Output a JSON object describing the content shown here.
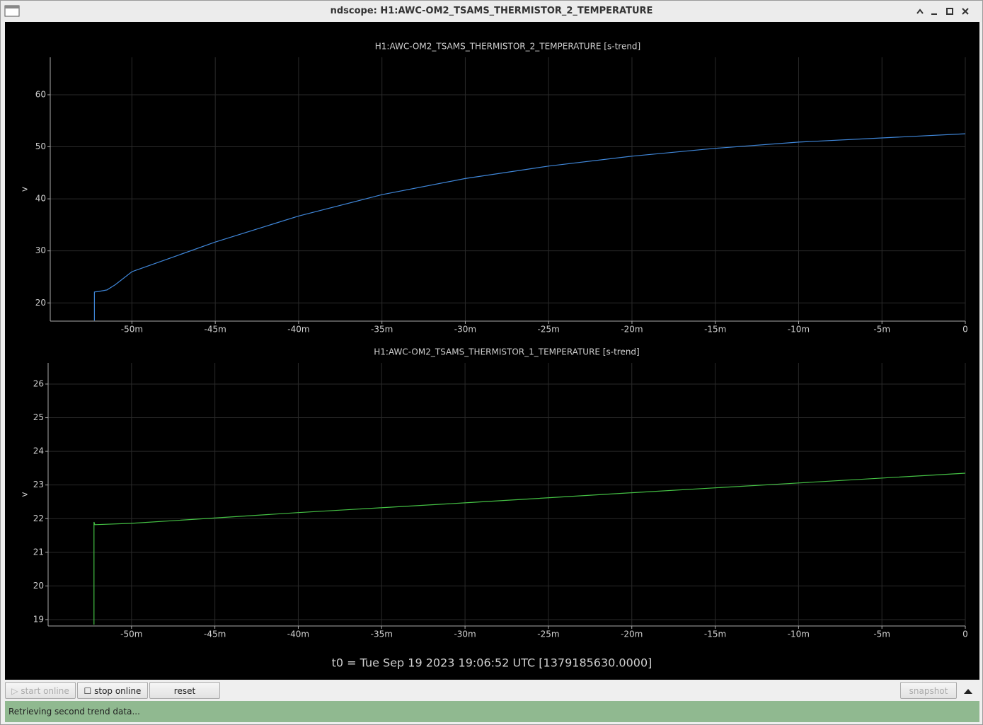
{
  "window": {
    "title": "ndscope: H1:AWC-OM2_TSAMS_THERMISTOR_2_TEMPERATURE"
  },
  "chart_data": [
    {
      "type": "line",
      "title": "H1:AWC-OM2_TSAMS_THERMISTOR_2_TEMPERATURE [s-trend]",
      "y_label": "v",
      "x": [
        -52.25,
        -52.25,
        -52,
        -51.5,
        -51,
        -50,
        -45,
        -40,
        -35,
        -30,
        -25,
        -20,
        -15,
        -10,
        -5,
        0
      ],
      "series": [
        {
          "color": "#3f86d8",
          "values": [
            16.6,
            22.1,
            22.2,
            22.5,
            23.5,
            26.0,
            31.7,
            36.7,
            40.8,
            43.9,
            46.3,
            48.2,
            49.7,
            50.9,
            51.7,
            52.5
          ]
        }
      ],
      "xlim": [
        -54.9,
        0
      ],
      "xticks": [
        {
          "value": -50,
          "label": "-50m"
        },
        {
          "value": -45,
          "label": "-45m"
        },
        {
          "value": -40,
          "label": "-40m"
        },
        {
          "value": -35,
          "label": "-35m"
        },
        {
          "value": -30,
          "label": "-30m"
        },
        {
          "value": -25,
          "label": "-25m"
        },
        {
          "value": -20,
          "label": "-20m"
        },
        {
          "value": -15,
          "label": "-15m"
        },
        {
          "value": -10,
          "label": "-10m"
        },
        {
          "value": -5,
          "label": "-5m"
        },
        0
      ],
      "ylim": [
        16.5,
        67.2
      ],
      "yticks": [
        20,
        30,
        40,
        50,
        60
      ],
      "grid": true
    },
    {
      "type": "line",
      "title": "H1:AWC-OM2_TSAMS_THERMISTOR_1_TEMPERATURE [s-trend]",
      "y_label": "v",
      "x": [
        -52.25,
        -52.25,
        -52.2,
        -50,
        -40,
        -30,
        -20,
        -10,
        0
      ],
      "series": [
        {
          "color": "#44c044",
          "values": [
            18.85,
            21.9,
            21.82,
            21.86,
            22.18,
            22.47,
            22.77,
            23.06,
            23.35
          ]
        }
      ],
      "xlim": [
        -55.0,
        0
      ],
      "xticks": [
        {
          "value": -50,
          "label": "-50m"
        },
        {
          "value": -45,
          "label": "-45m"
        },
        {
          "value": -40,
          "label": "-40m"
        },
        {
          "value": -35,
          "label": "-35m"
        },
        {
          "value": -30,
          "label": "-30m"
        },
        {
          "value": -25,
          "label": "-25m"
        },
        {
          "value": -20,
          "label": "-20m"
        },
        {
          "value": -15,
          "label": "-15m"
        },
        {
          "value": -10,
          "label": "-10m"
        },
        {
          "value": -5,
          "label": "-5m"
        },
        0
      ],
      "ylim": [
        18.81,
        26.63
      ],
      "yticks": [
        19,
        20,
        21,
        22,
        23,
        24,
        25,
        26
      ],
      "grid": true
    }
  ],
  "t0": "t0 = Tue Sep 19 2023 19:06:52 UTC [1379185630.0000]",
  "toolbar": {
    "start": "start online",
    "stop": "stop online",
    "reset": "reset",
    "snapshot": "snapshot"
  },
  "status": "Retrieving second trend data..."
}
